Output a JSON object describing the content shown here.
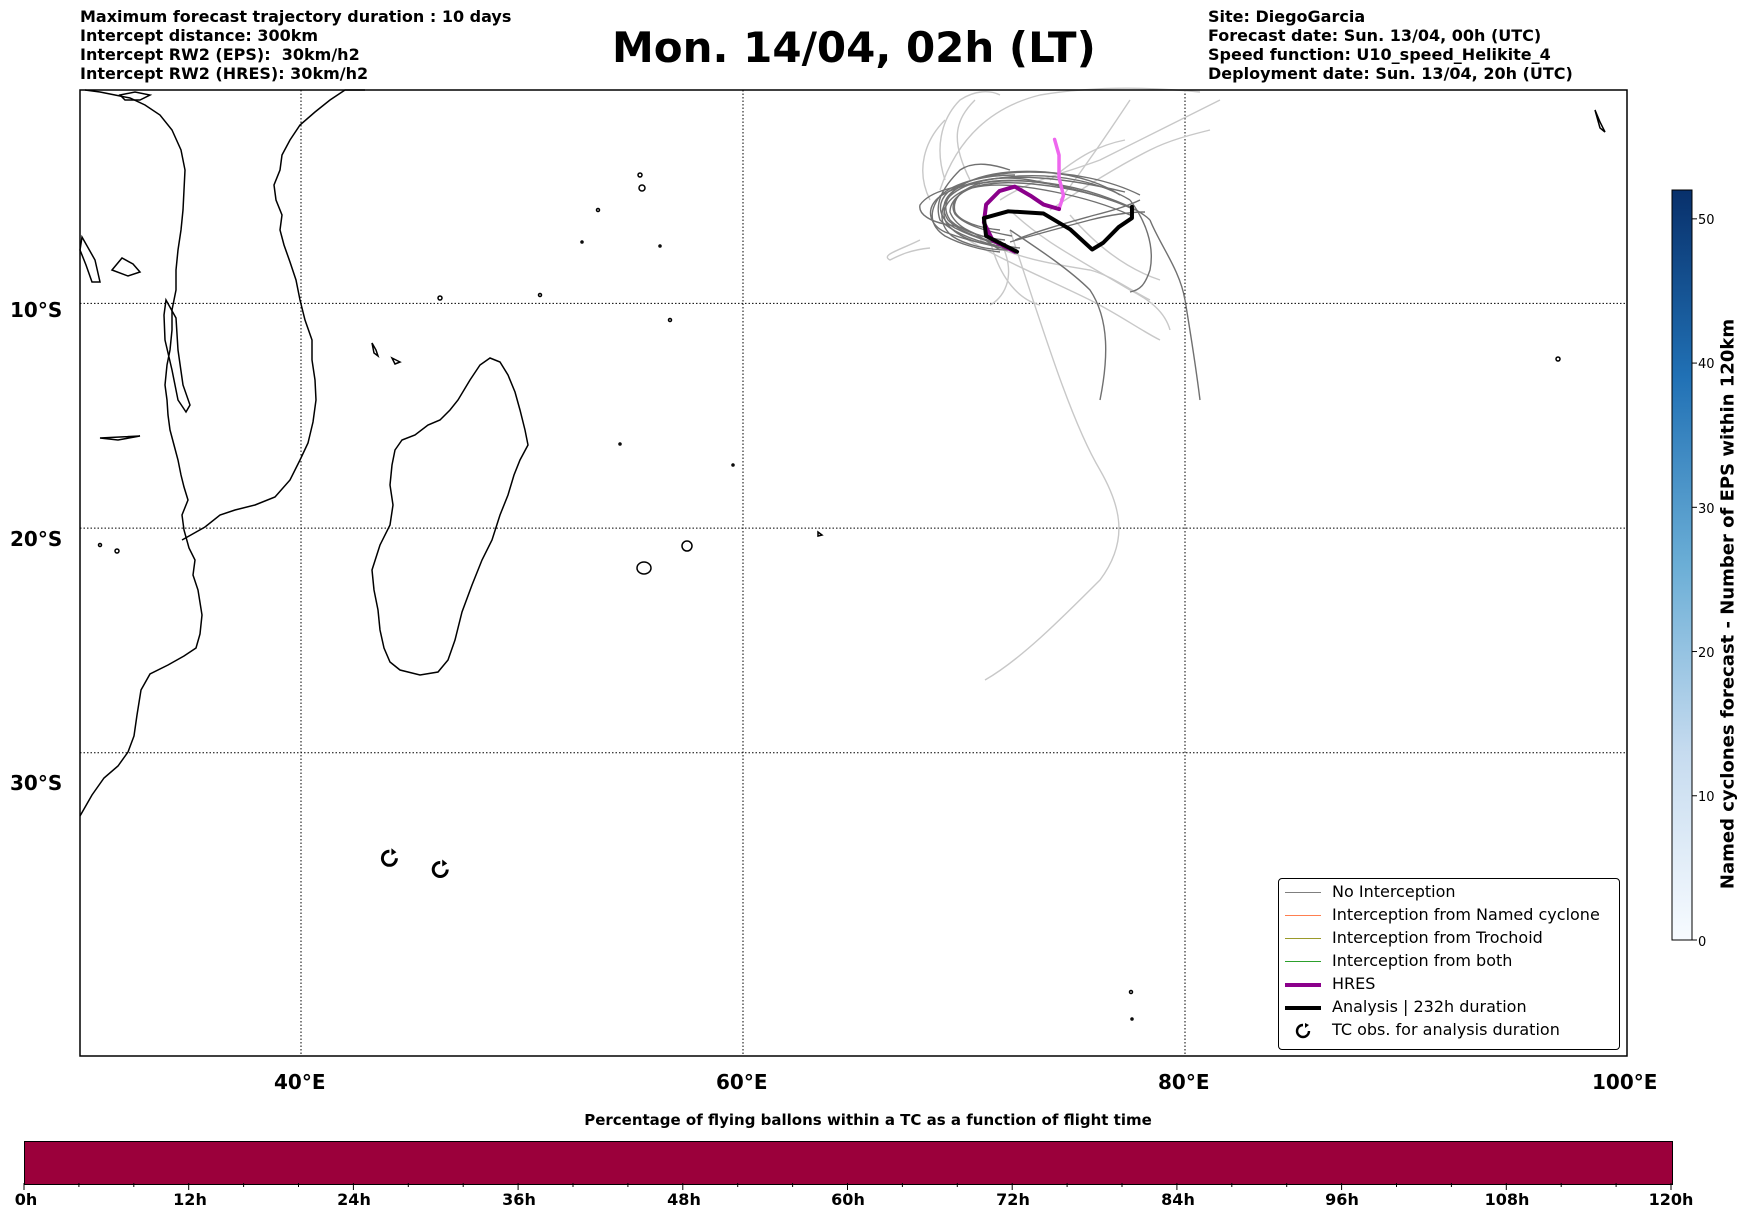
{
  "header_left": [
    "Maximum forecast trajectory duration : 10 days",
    "Intercept distance: 300km",
    "Intercept RW2 (EPS):  30km/h2",
    "Intercept RW2 (HRES): 30km/h2"
  ],
  "title": "Mon. 14/04, 02h (LT)",
  "header_right": [
    "Site: DiegoGarcia",
    "Forecast date: Sun. 13/04, 00h (UTC)",
    "Speed function: U10_speed_Helikite_4",
    "Deployment date: Sun. 13/04, 20h (UTC)"
  ],
  "map": {
    "lon_range": [
      30,
      100
    ],
    "lat_range": [
      -43.5,
      -0.5
    ],
    "lon_ticks": [
      "40°E",
      "60°E",
      "80°E",
      "100°E"
    ],
    "lat_ticks": [
      "10°S",
      "20°S",
      "30°S"
    ],
    "gridlines": true
  },
  "legend": {
    "placement": "lower-right",
    "items": [
      {
        "label": "No Interception",
        "color": "#7f7f7f"
      },
      {
        "label": "Interception from Named cyclone",
        "color": "#ff7f50"
      },
      {
        "label": "Interception from Trochoid",
        "color": "#9a9a2a"
      },
      {
        "label": "Interception from both",
        "color": "#2ca02c"
      },
      {
        "label": "HRES",
        "color": "#8b008b"
      },
      {
        "label": "Analysis | 232h duration",
        "color": "#000000"
      },
      {
        "label": "TC obs. for analysis duration",
        "icon": "tc-symbol-icon"
      }
    ]
  },
  "colorbar": {
    "label": "Named cyclones forecast - Number of EPS within 120km",
    "ticks": [
      "0",
      "10",
      "20",
      "30",
      "40",
      "50"
    ],
    "range": [
      0,
      52
    ],
    "colormap": [
      "#f7fbff",
      "#08306b"
    ]
  },
  "progress_bar": {
    "title": "Percentage of flying ballons within a TC as a function of flight time",
    "ticks": [
      "0h",
      "12h",
      "24h",
      "36h",
      "48h",
      "60h",
      "72h",
      "84h",
      "96h",
      "108h",
      "120h"
    ],
    "color": "#9b003b"
  },
  "chart_data": {
    "type": "map",
    "hres_track": [
      [
        72.3,
        -7.7
      ],
      [
        71.3,
        -7.2
      ],
      [
        70.9,
        -6.4
      ],
      [
        71.0,
        -5.6
      ],
      [
        71.6,
        -5.0
      ],
      [
        72.3,
        -4.8
      ],
      [
        73.0,
        -5.2
      ],
      [
        73.6,
        -5.6
      ],
      [
        74.3,
        -5.8
      ]
    ],
    "hres_track_late": [
      [
        74.3,
        -5.8
      ],
      [
        74.5,
        -5.2
      ],
      [
        74.3,
        -4.4
      ],
      [
        74.3,
        -3.4
      ],
      [
        74.1,
        -2.7
      ]
    ],
    "analysis_track": [
      [
        72.4,
        -7.7
      ],
      [
        71.0,
        -7.0
      ],
      [
        70.9,
        -6.2
      ],
      [
        72.0,
        -5.9
      ],
      [
        73.6,
        -6.0
      ],
      [
        74.8,
        -6.7
      ],
      [
        75.8,
        -7.6
      ],
      [
        76.3,
        -7.3
      ],
      [
        77.0,
        -6.6
      ],
      [
        77.6,
        -6.2
      ],
      [
        77.6,
        -5.7
      ]
    ],
    "tc_obs": [
      [
        44.0,
        -34.7
      ],
      [
        46.3,
        -35.2
      ]
    ]
  }
}
